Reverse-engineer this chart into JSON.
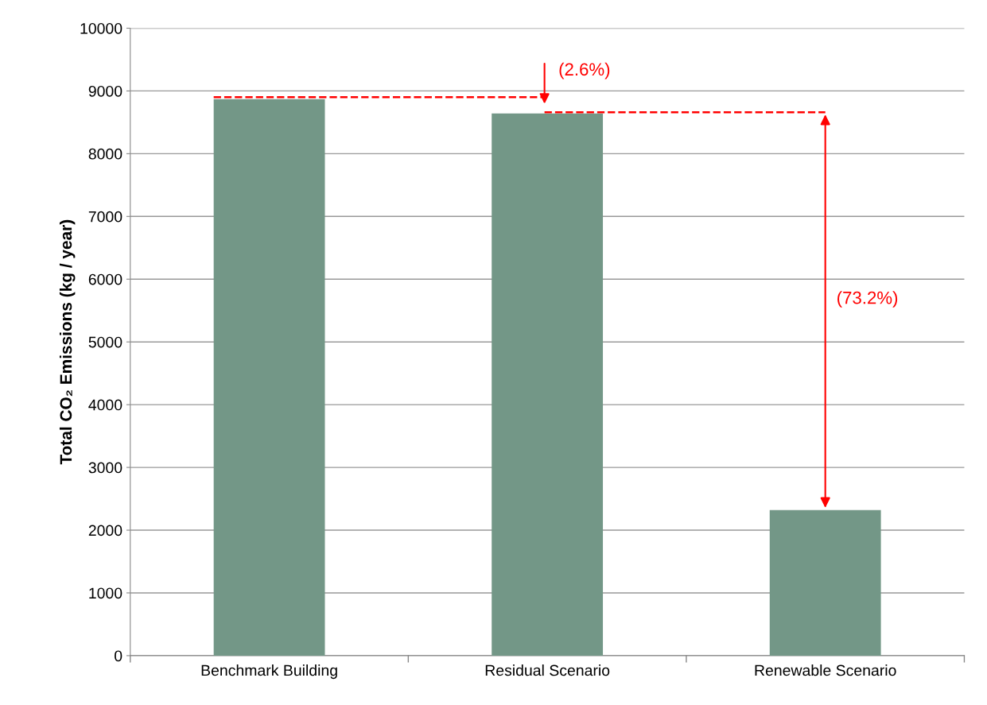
{
  "chart_data": {
    "type": "bar",
    "ylabel": "Total CO₂ Emissions (kg / year)",
    "categories": [
      "Benchmark Building",
      "Residual Scenario",
      "Renewable Scenario"
    ],
    "values": [
      8870,
      8640,
      2320
    ],
    "color": "#739787",
    "ylim": [
      0,
      10000
    ],
    "yticks": [
      0,
      1000,
      2000,
      3000,
      4000,
      5000,
      6000,
      7000,
      8000,
      9000,
      10000
    ],
    "grid": "y",
    "annotations": [
      "(2.6%)",
      "(73.2%)"
    ]
  }
}
